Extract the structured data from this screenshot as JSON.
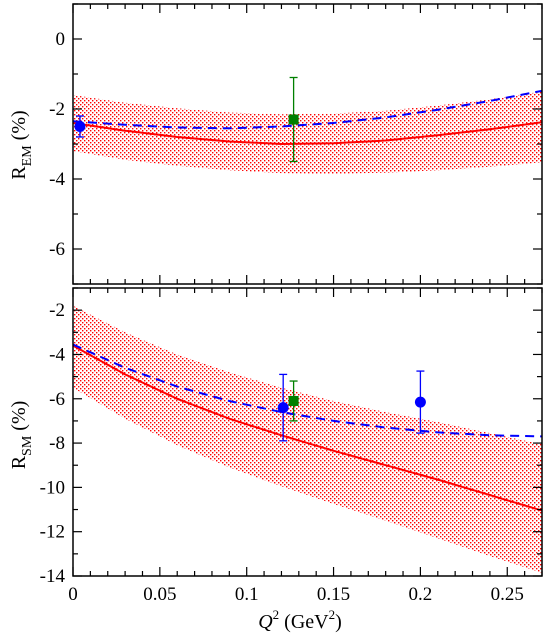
{
  "colors": {
    "model_line": "#ff0000",
    "model_band": "#ff0000",
    "fit_line": "#0000ff",
    "data_circles": "#0000ff",
    "data_squares": "#008000",
    "axes": "#000000"
  },
  "chart_data": [
    {
      "type": "line",
      "panel": "top",
      "ylabel_main": "R",
      "ylabel_sub": "EM",
      "ylabel_unit": " (%)",
      "xlim": [
        0,
        0.27
      ],
      "ylim": [
        -7,
        1
      ],
      "yticks": [
        0,
        -2,
        -4,
        -6
      ],
      "ytick_labels": [
        "0",
        "-2",
        "-4",
        "-6"
      ],
      "grid": false,
      "series": [
        {
          "style": "solid-red",
          "x": [
            0.0,
            0.03,
            0.06,
            0.09,
            0.12,
            0.15,
            0.18,
            0.21,
            0.24,
            0.27
          ],
          "y": [
            -2.4,
            -2.62,
            -2.8,
            -2.93,
            -3.0,
            -2.98,
            -2.9,
            -2.75,
            -2.58,
            -2.38
          ]
        },
        {
          "style": "dashed-blue",
          "x": [
            0.0,
            0.03,
            0.06,
            0.09,
            0.12,
            0.15,
            0.18,
            0.21,
            0.24,
            0.27
          ],
          "y": [
            -2.35,
            -2.45,
            -2.53,
            -2.55,
            -2.5,
            -2.4,
            -2.24,
            -2.02,
            -1.77,
            -1.48
          ]
        },
        {
          "style": "band-red",
          "x": [
            0.0,
            0.03,
            0.06,
            0.09,
            0.12,
            0.15,
            0.18,
            0.21,
            0.24,
            0.27
          ],
          "y_low": [
            -3.2,
            -3.45,
            -3.62,
            -3.75,
            -3.83,
            -3.85,
            -3.82,
            -3.75,
            -3.65,
            -3.52
          ],
          "y_high": [
            -1.6,
            -1.82,
            -1.98,
            -2.1,
            -2.15,
            -2.13,
            -2.05,
            -1.9,
            -1.72,
            -1.5
          ]
        },
        {
          "style": "points-blue-circle",
          "x": [
            0.004
          ],
          "y": [
            -2.5
          ],
          "err": [
            0.3
          ]
        },
        {
          "style": "points-green-square",
          "x": [
            0.127
          ],
          "y": [
            -2.3
          ],
          "err": [
            1.2
          ]
        }
      ]
    },
    {
      "type": "line",
      "panel": "bottom",
      "ylabel_main": "R",
      "ylabel_sub": "SM",
      "ylabel_unit": " (%)",
      "xlabel_var": "Q",
      "xlabel_exp": "2",
      "xlabel_unit_open": " (GeV",
      "xlabel_unit_exp": "2",
      "xlabel_unit_close": ")",
      "xlim": [
        0,
        0.27
      ],
      "ylim": [
        -14,
        -1
      ],
      "xticks": [
        0,
        0.05,
        0.1,
        0.15,
        0.2,
        0.25
      ],
      "xtick_labels": [
        "0",
        "0.05",
        "0.1",
        "0.15",
        "0.2",
        "0.25"
      ],
      "yticks": [
        -2,
        -4,
        -6,
        -8,
        -10,
        -12,
        -14
      ],
      "ytick_labels": [
        "-2",
        "-4",
        "-6",
        "-8",
        "-10",
        "-12",
        "-14"
      ],
      "grid": false,
      "series": [
        {
          "style": "solid-red",
          "x": [
            0.0,
            0.03,
            0.06,
            0.09,
            0.12,
            0.15,
            0.18,
            0.21,
            0.24,
            0.27
          ],
          "y": [
            -3.6,
            -4.9,
            -6.0,
            -6.9,
            -7.65,
            -8.35,
            -9.0,
            -9.65,
            -10.35,
            -11.05
          ]
        },
        {
          "style": "dashed-blue",
          "x": [
            0.0,
            0.03,
            0.06,
            0.09,
            0.12,
            0.15,
            0.18,
            0.21,
            0.24,
            0.27
          ],
          "y": [
            -3.55,
            -4.6,
            -5.45,
            -6.1,
            -6.6,
            -7.0,
            -7.3,
            -7.52,
            -7.65,
            -7.7
          ]
        },
        {
          "style": "band-red",
          "x": [
            0.0,
            0.03,
            0.06,
            0.09,
            0.12,
            0.15,
            0.18,
            0.21,
            0.24,
            0.27
          ],
          "y_low": [
            -5.5,
            -6.9,
            -8.1,
            -9.1,
            -9.95,
            -10.75,
            -11.5,
            -12.3,
            -13.1,
            -13.85
          ],
          "y_high": [
            -1.8,
            -3.0,
            -4.0,
            -4.8,
            -5.5,
            -6.1,
            -6.6,
            -7.05,
            -7.55,
            -8.05
          ]
        },
        {
          "style": "points-blue-circle",
          "x": [
            0.121,
            0.2
          ],
          "y": [
            -6.4,
            -6.15
          ],
          "err": [
            1.5,
            1.4
          ]
        },
        {
          "style": "points-green-square",
          "x": [
            0.127
          ],
          "y": [
            -6.1
          ],
          "err": [
            0.9
          ]
        }
      ]
    }
  ]
}
